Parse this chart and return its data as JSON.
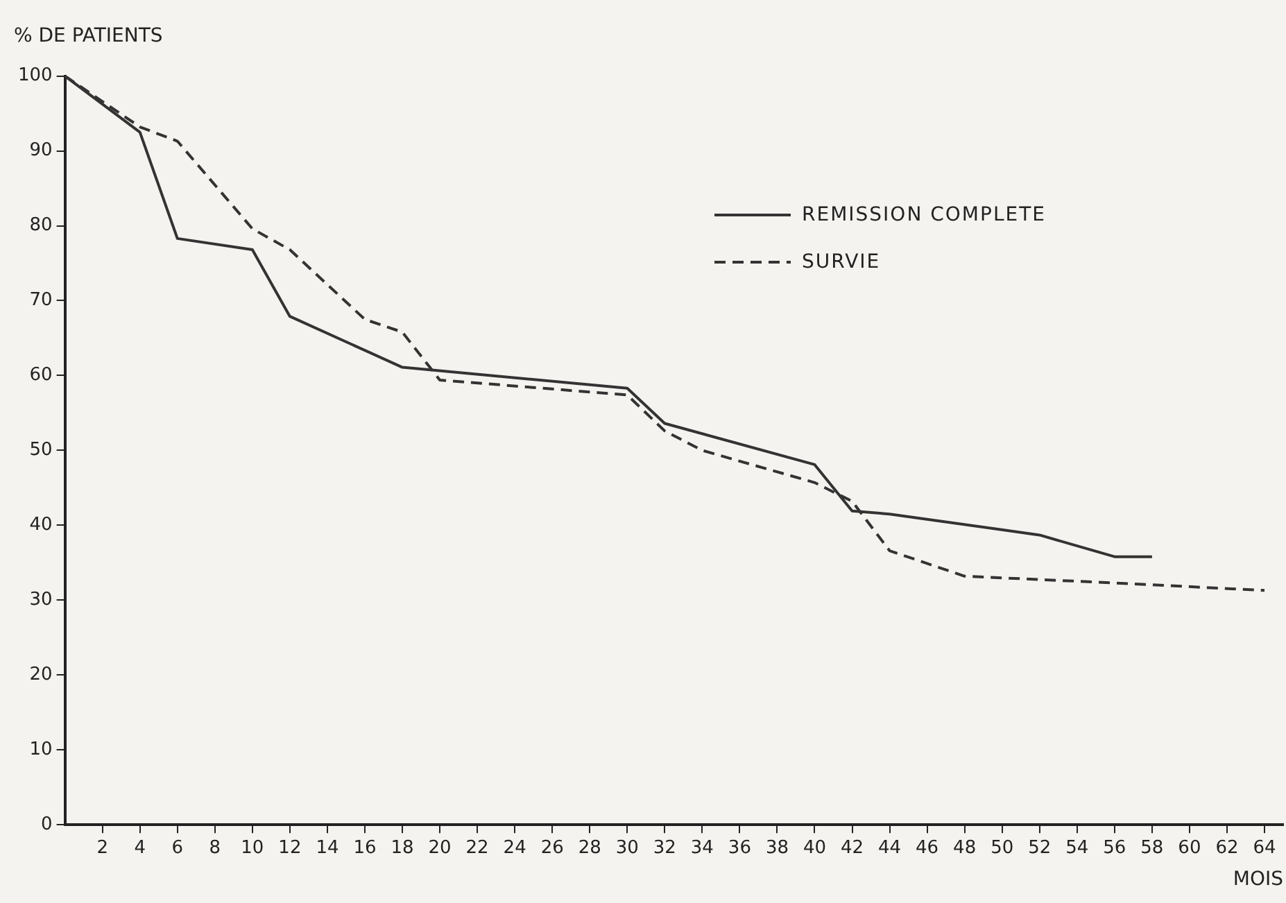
{
  "chart_data": {
    "type": "line",
    "title": "% DE PATIENTS",
    "xlabel": "MOIS",
    "xlim": [
      0,
      65
    ],
    "xticks": [
      2,
      4,
      6,
      8,
      10,
      12,
      14,
      16,
      18,
      20,
      22,
      24,
      26,
      28,
      30,
      32,
      34,
      36,
      38,
      40,
      42,
      44,
      46,
      48,
      50,
      52,
      54,
      56,
      58,
      60,
      62,
      64
    ],
    "ylim": [
      0,
      100
    ],
    "yticks": [
      0,
      10,
      20,
      30,
      40,
      50,
      60,
      70,
      80,
      90,
      100
    ],
    "grid": false,
    "legend": "top right",
    "marker": "none",
    "series": [
      {
        "name": "REMISSION COMPLETE",
        "color": "#333333",
        "line_style": "solid",
        "x": [
          0,
          4,
          6,
          10,
          12,
          18,
          30,
          32,
          40,
          42,
          44,
          52,
          56,
          58
        ],
        "values": [
          100,
          92.5,
          78.3,
          76.8,
          67.9,
          61.1,
          58.3,
          53.6,
          48.1,
          41.9,
          41.5,
          38.7,
          35.8,
          35.8
        ]
      },
      {
        "name": "SURVIE",
        "color": "#333333",
        "line_style": "dashed",
        "x": [
          0,
          4,
          6,
          10,
          12,
          16,
          18,
          20,
          30,
          32,
          34,
          40,
          42,
          44,
          48,
          56,
          64
        ],
        "values": [
          100,
          93.2,
          91.3,
          79.6,
          76.8,
          67.5,
          65.8,
          59.4,
          57.4,
          52.6,
          50,
          45.7,
          43.2,
          36.6,
          33.2,
          32.3,
          31.3
        ]
      }
    ]
  }
}
